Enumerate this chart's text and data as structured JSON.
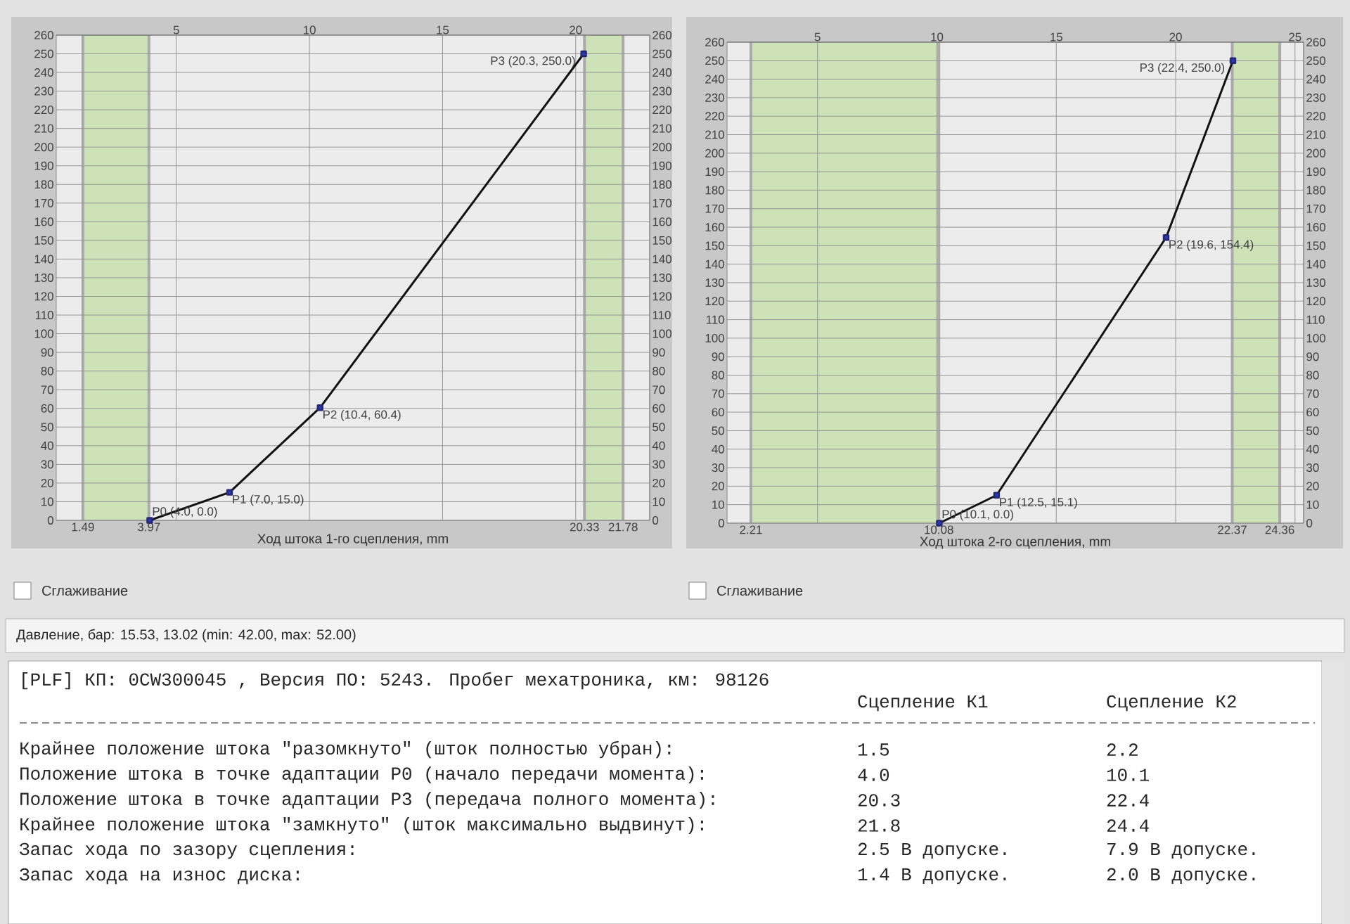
{
  "chart_data": [
    {
      "type": "line",
      "xlabel": "Ход штока 1-го сцепления, mm",
      "xlim": [
        0.49,
        22.78
      ],
      "xticks": [
        1.49,
        3.97,
        20.33,
        21.78
      ],
      "x2lim": [
        0.49,
        22.78
      ],
      "x2ticks": [
        5,
        10,
        15,
        20
      ],
      "ylim": [
        0,
        260
      ],
      "yticks": [
        0,
        10,
        20,
        30,
        40,
        50,
        60,
        70,
        80,
        90,
        100,
        110,
        120,
        130,
        140,
        150,
        160,
        170,
        180,
        190,
        200,
        210,
        220,
        230,
        240,
        250,
        260
      ],
      "y2lim": [
        0,
        260
      ],
      "y2ticks": [
        0,
        10,
        20,
        30,
        40,
        50,
        60,
        70,
        80,
        90,
        100,
        110,
        120,
        130,
        140,
        150,
        160,
        170,
        180,
        190,
        200,
        210,
        220,
        230,
        240,
        250,
        260
      ],
      "grid": true,
      "marker": "square",
      "series": [
        {
          "color": "#111111",
          "x": [
            4.0,
            7.0,
            10.4,
            20.3
          ],
          "values": [
            0.0,
            15.0,
            60.4,
            250.0
          ]
        }
      ],
      "bands": [
        {
          "axis": "x",
          "from": 1.49,
          "to": 3.97,
          "color": "#cde2b6"
        },
        {
          "axis": "x",
          "from": 20.33,
          "to": 21.78,
          "color": "#cde2b6"
        }
      ],
      "annotations": [
        {
          "text": "P0 (4.0, 0.0)",
          "x": 4.0,
          "y": 0.0
        },
        {
          "text": "P1 (7.0, 15.0)",
          "x": 7.0,
          "y": 15.0
        },
        {
          "text": "P2 (10.4, 60.4)",
          "x": 10.4,
          "y": 60.4
        },
        {
          "text": "P3 (20.3, 250.0)",
          "x": 20.3,
          "y": 250.0
        },
        "Сглаживание"
      ]
    },
    {
      "type": "line",
      "xlabel": "Ход штока 2-го сцепления, mm",
      "xlim": [
        1.21,
        25.36
      ],
      "xticks": [
        2.21,
        10.08,
        22.37,
        24.36
      ],
      "x2lim": [
        1.21,
        25.36
      ],
      "x2ticks": [
        5,
        10,
        15,
        20,
        25
      ],
      "ylim": [
        0,
        260
      ],
      "yticks": [
        0,
        10,
        20,
        30,
        40,
        50,
        60,
        70,
        80,
        90,
        100,
        110,
        120,
        130,
        140,
        150,
        160,
        170,
        180,
        190,
        200,
        210,
        220,
        230,
        240,
        250,
        260
      ],
      "y2lim": [
        0,
        260
      ],
      "y2ticks": [
        0,
        10,
        20,
        30,
        40,
        50,
        60,
        70,
        80,
        90,
        100,
        110,
        120,
        130,
        140,
        150,
        160,
        170,
        180,
        190,
        200,
        210,
        220,
        230,
        240,
        250,
        260
      ],
      "grid": true,
      "marker": "square",
      "series": [
        {
          "color": "#111111",
          "x": [
            10.1,
            12.5,
            19.6,
            22.4
          ],
          "values": [
            0.0,
            15.1,
            154.4,
            250.0
          ]
        }
      ],
      "bands": [
        {
          "axis": "x",
          "from": 2.21,
          "to": 10.08,
          "color": "#cde2b6"
        },
        {
          "axis": "x",
          "from": 22.37,
          "to": 24.36,
          "color": "#cde2b6"
        }
      ],
      "annotations": [
        {
          "text": "P0 (10.1, 0.0)",
          "x": 10.1,
          "y": 0.0
        },
        {
          "text": "P1 (12.5, 15.1)",
          "x": 12.5,
          "y": 15.1
        },
        {
          "text": "P2 (19.6, 154.4)",
          "x": 19.6,
          "y": 154.4
        },
        {
          "text": "P3 (22.4, 250.0)",
          "x": 22.4,
          "y": 250.0
        },
        "Сглаживание"
      ]
    },
    {
      "type": "other",
      "annotations": [
        "Давление, бар: 15.53, 13.02 (min: 42.00, max: 52.00)",
        "[PLF]  КП: 0CW300045  , Версия ПО: 5243. Пробег мехатроника, км: 98126",
        "Сцепление К1",
        "Сцепление К2",
        "Крайнее положение штока \"разомкнуто\" (шток полностью убран):",
        "1.5",
        "2.2",
        "Положение штока в точке адаптации P0 (начало передачи момента):",
        "4.0",
        "10.1",
        "Положение штока в точке адаптации P3 (передача полного момента):",
        "20.3",
        "22.4",
        "Крайнее положение штока \"замкнуто\" (шток максимально выдвинут):",
        "21.8",
        "24.4",
        "Запас хода по зазору сцепления:",
        "2.5  В допуске.",
        "7.9  В допуске.",
        "Запас хода на износ диска:",
        "1.4  В допуске.",
        "2.0  В допуске."
      ]
    }
  ]
}
